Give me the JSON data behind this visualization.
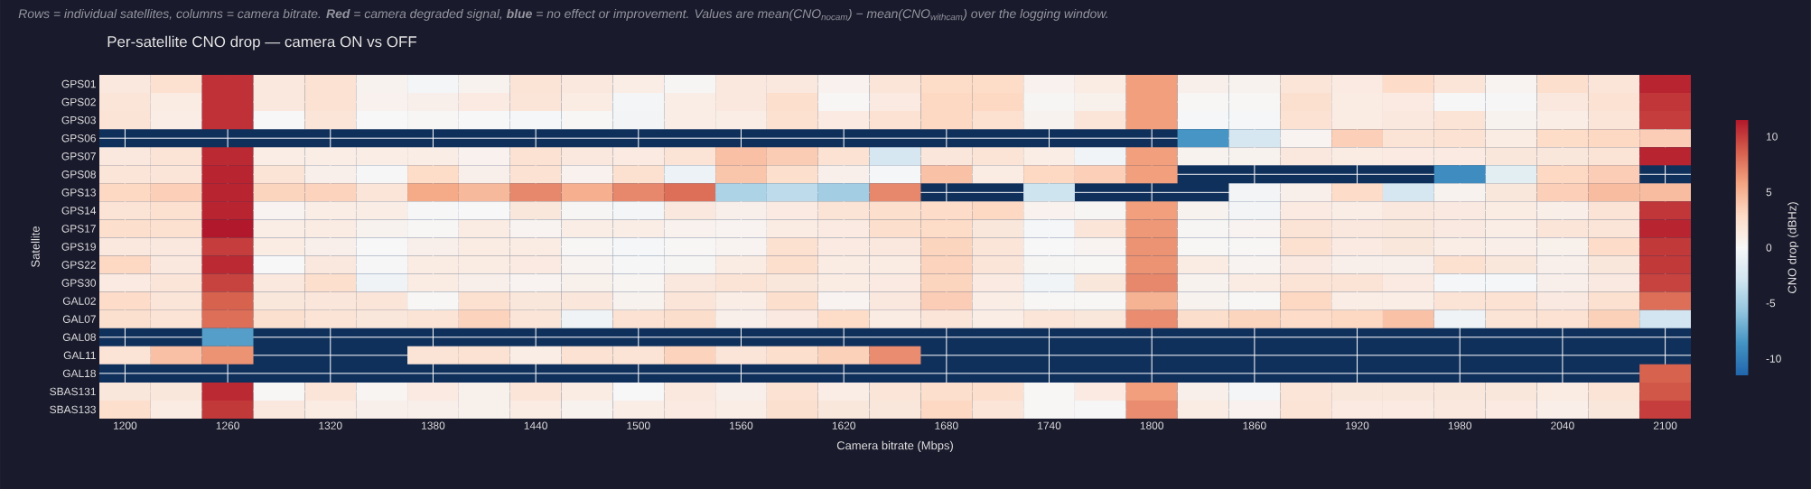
{
  "chart_data": {
    "type": "heatmap",
    "title": "Per-satellite CNO drop — camera ON vs OFF",
    "subtitle": "Rows = individual satellites, columns = camera bitrate. **Red** = camera degraded signal, **blue** = no effect or improvement. Values are mean(CNO$_{nocam}$) − mean(CNO$_{withcam}$) over the logging window.",
    "xlabel": "Camera bitrate (Mbps)",
    "ylabel": "Satellite",
    "clabel": "CNO drop (dBHz)",
    "x": [
      1200,
      1230,
      1260,
      1290,
      1320,
      1350,
      1380,
      1410,
      1440,
      1470,
      1500,
      1530,
      1560,
      1590,
      1620,
      1650,
      1680,
      1710,
      1740,
      1770,
      1800,
      1830,
      1860,
      1890,
      1920,
      1950,
      1980,
      2010,
      2040,
      2070,
      2100
    ],
    "xlim": [
      1185,
      2115
    ],
    "xticks": [
      1200,
      1260,
      1320,
      1380,
      1440,
      1500,
      1560,
      1620,
      1680,
      1740,
      1800,
      1860,
      1920,
      1980,
      2040,
      2100
    ],
    "y_categories": [
      "GPS01",
      "GPS02",
      "GPS03",
      "GPS06",
      "GPS07",
      "GPS08",
      "GPS13",
      "GPS14",
      "GPS17",
      "GPS19",
      "GPS22",
      "GPS30",
      "GAL02",
      "GAL07",
      "GAL08",
      "GAL11",
      "GAL18",
      "SBAS131",
      "SBAS133"
    ],
    "cells": [
      [
        1.5,
        2.3,
        10.5,
        1.5,
        2.2,
        0.5,
        -0.3,
        0.5,
        2.0,
        1.5,
        1.0,
        0.2,
        1.5,
        1.5,
        0.6,
        1.8,
        2.8,
        2.8,
        0.6,
        1.2,
        6.0,
        0.8,
        0.5,
        1.8,
        1.3,
        2.7,
        1.8,
        0.4,
        2.5,
        1.8,
        11.0
      ],
      [
        1.8,
        1.2,
        10.5,
        1.5,
        2.2,
        0.6,
        0.8,
        1.3,
        1.8,
        1.2,
        -0.3,
        1.0,
        1.5,
        2.5,
        0.1,
        1.3,
        3.0,
        3.0,
        0.2,
        0.7,
        6.0,
        0.1,
        0.1,
        2.4,
        1.2,
        1.3,
        -0.1,
        -0.1,
        1.5,
        2.2,
        10.3
      ],
      [
        2.0,
        1.0,
        10.5,
        0.0,
        1.8,
        0.0,
        0.1,
        0.0,
        -0.2,
        0.1,
        -0.4,
        1.0,
        1.0,
        2.3,
        1.3,
        2.2,
        3.0,
        2.3,
        0.5,
        1.8,
        6.0,
        -0.2,
        -0.2,
        2.2,
        1.2,
        1.5,
        2.0,
        0.5,
        1.0,
        1.8,
        10.0
      ],
      [
        null,
        null,
        null,
        null,
        null,
        null,
        null,
        null,
        null,
        null,
        null,
        null,
        null,
        null,
        null,
        null,
        null,
        null,
        null,
        null,
        null,
        -8.5,
        -2.5,
        0.4,
        3.5,
        2.0,
        2.2,
        1.2,
        2.8,
        3.0,
        3.6
      ],
      [
        1.5,
        2.0,
        10.8,
        1.0,
        1.0,
        1.0,
        1.0,
        0.6,
        2.2,
        1.5,
        1.3,
        2.0,
        4.3,
        3.7,
        2.2,
        -2.5,
        1.7,
        2.0,
        1.0,
        -0.5,
        6.0,
        0.5,
        0.5,
        1.5,
        1.2,
        1.3,
        1.3,
        1.6,
        1.6,
        2.0,
        11.0
      ],
      [
        1.8,
        1.8,
        11.0,
        2.0,
        0.8,
        -0.1,
        2.8,
        0.8,
        2.2,
        0.6,
        2.3,
        -0.8,
        4.0,
        2.5,
        0.8,
        -0.2,
        4.2,
        1.2,
        3.0,
        3.5,
        6.0,
        null,
        null,
        null,
        null,
        null,
        -9.0,
        -1.5,
        3.0,
        3.6,
        null
      ],
      [
        3.0,
        3.5,
        11.0,
        3.2,
        3.3,
        1.8,
        5.5,
        4.7,
        7.0,
        5.2,
        7.0,
        8.0,
        -4.5,
        -3.8,
        -5.0,
        7.0,
        null,
        null,
        -3.0,
        null,
        null,
        null,
        -0.4,
        0.8,
        2.7,
        -2.5,
        0.5,
        1.6,
        3.5,
        4.5,
        4.5
      ],
      [
        2.0,
        2.3,
        11.0,
        0.4,
        1.0,
        1.0,
        -0.1,
        0.0,
        1.6,
        0.2,
        -0.3,
        1.5,
        0.8,
        1.3,
        2.0,
        2.5,
        2.7,
        3.0,
        0.6,
        0.2,
        6.0,
        0.5,
        -0.4,
        1.3,
        1.0,
        1.5,
        1.4,
        1.2,
        0.9,
        2.0,
        10.3
      ],
      [
        2.5,
        2.3,
        11.5,
        1.0,
        1.2,
        0.5,
        0.1,
        1.2,
        0.4,
        1.0,
        1.0,
        0.6,
        0.4,
        1.2,
        1.3,
        2.5,
        2.8,
        1.6,
        -0.2,
        1.8,
        6.3,
        0.2,
        0.4,
        2.0,
        1.5,
        1.6,
        1.4,
        1.0,
        1.8,
        1.8,
        11.0
      ],
      [
        1.5,
        1.5,
        10.0,
        1.2,
        0.8,
        0.0,
        0.8,
        1.2,
        1.2,
        0.1,
        -0.2,
        0.1,
        0.4,
        2.3,
        1.3,
        1.5,
        3.2,
        1.8,
        0.0,
        0.4,
        6.5,
        0.1,
        0.1,
        2.3,
        1.3,
        1.6,
        1.0,
        0.9,
        0.7,
        2.7,
        10.2
      ],
      [
        3.0,
        1.5,
        10.8,
        0.0,
        1.5,
        -0.1,
        1.2,
        1.2,
        1.3,
        0.4,
        -0.1,
        0.2,
        1.2,
        2.5,
        1.2,
        1.2,
        3.3,
        1.8,
        0.2,
        0.1,
        6.5,
        1.2,
        0.4,
        1.4,
        0.8,
        0.8,
        2.3,
        1.6,
        0.8,
        1.6,
        10.2
      ],
      [
        1.3,
        1.8,
        9.8,
        1.5,
        2.5,
        -0.6,
        1.2,
        0.8,
        0.4,
        0.7,
        0.3,
        1.5,
        2.0,
        1.6,
        1.2,
        1.3,
        3.2,
        1.3,
        -0.5,
        1.6,
        7.0,
        0.5,
        1.2,
        2.0,
        2.0,
        1.3,
        -0.2,
        -0.2,
        0.8,
        1.4,
        9.8
      ],
      [
        2.7,
        1.8,
        8.5,
        1.6,
        1.7,
        1.8,
        0.1,
        2.3,
        1.6,
        1.7,
        0.5,
        1.8,
        1.0,
        2.5,
        0.4,
        1.5,
        3.6,
        1.0,
        0.1,
        0.1,
        5.0,
        0.5,
        0.1,
        3.0,
        1.0,
        1.0,
        2.0,
        2.2,
        1.4,
        2.3,
        8.0
      ],
      [
        2.4,
        2.0,
        8.0,
        2.4,
        2.0,
        1.6,
        2.0,
        3.3,
        1.8,
        -0.6,
        2.2,
        2.6,
        0.8,
        1.4,
        2.8,
        1.2,
        1.8,
        1.0,
        1.8,
        1.6,
        6.8,
        2.6,
        3.2,
        2.7,
        3.0,
        4.2,
        -0.6,
        2.0,
        2.2,
        3.4,
        -2.8
      ],
      [
        null,
        null,
        -8.0,
        null,
        null,
        null,
        null,
        null,
        null,
        null,
        null,
        null,
        null,
        null,
        null,
        null,
        null,
        null,
        null,
        null,
        null,
        null,
        null,
        null,
        null,
        null,
        null,
        null,
        null,
        null,
        null
      ],
      [
        2.0,
        4.3,
        6.5,
        null,
        null,
        null,
        2.0,
        2.2,
        1.0,
        2.2,
        2.0,
        3.3,
        1.8,
        2.5,
        3.4,
        6.8,
        null,
        null,
        null,
        null,
        null,
        null,
        null,
        null,
        null,
        null,
        null,
        null,
        null,
        null,
        null
      ],
      [
        null,
        null,
        null,
        null,
        null,
        null,
        null,
        null,
        null,
        null,
        null,
        null,
        null,
        null,
        null,
        null,
        null,
        null,
        null,
        null,
        null,
        null,
        null,
        null,
        null,
        null,
        null,
        null,
        null,
        null,
        8.5
      ],
      [
        1.6,
        1.6,
        10.8,
        0.1,
        1.8,
        0.3,
        1.3,
        0.7,
        1.8,
        1.2,
        0.0,
        1.5,
        0.8,
        2.2,
        1.0,
        1.8,
        2.5,
        2.5,
        0.1,
        1.3,
        6.0,
        0.8,
        -0.3,
        1.8,
        1.6,
        1.6,
        1.6,
        1.6,
        1.2,
        2.0,
        9.0
      ],
      [
        2.5,
        1.2,
        10.2,
        1.5,
        1.2,
        0.8,
        0.8,
        0.7,
        1.2,
        0.5,
        1.0,
        1.3,
        1.0,
        2.4,
        1.6,
        1.6,
        3.0,
        1.8,
        0.1,
        -0.1,
        6.8,
        1.2,
        0.6,
        2.0,
        1.3,
        1.3,
        1.5,
        1.3,
        0.9,
        1.6,
        10.0
      ]
    ],
    "clim": [
      -11.5,
      11.5
    ],
    "cticks": [
      -10,
      -5,
      0,
      5,
      10
    ],
    "grid": true
  }
}
